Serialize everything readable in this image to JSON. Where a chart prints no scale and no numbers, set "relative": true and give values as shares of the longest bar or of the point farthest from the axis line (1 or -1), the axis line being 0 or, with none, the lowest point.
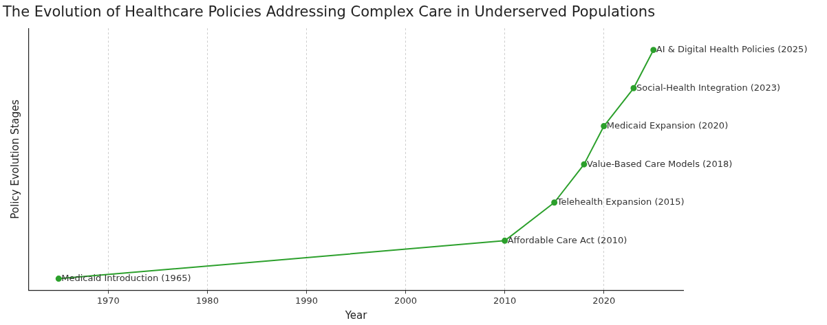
{
  "chart_data": {
    "type": "line",
    "title": "The Evolution of Healthcare Policies Addressing Complex Care in Underserved Populations",
    "xlabel": "Year",
    "ylabel": "Policy Evolution Stages",
    "x": [
      1965,
      2010,
      2015,
      2018,
      2020,
      2023,
      2025
    ],
    "series": [
      {
        "color": "#2ca02c",
        "values": [
          0.048,
          0.206,
          0.365,
          0.524,
          0.683,
          0.841,
          1
        ]
      }
    ],
    "relative": true,
    "xlim": [
      1962,
      2028
    ],
    "xticks": [
      1970,
      1980,
      1990,
      2000,
      2010,
      2020
    ],
    "grid": "x",
    "marker": "circle",
    "line_style": "solid",
    "legend": false,
    "annotations": [
      {
        "text": "Medicaid Introduction (1965)",
        "x": 1965,
        "y": 0.048
      },
      {
        "text": "Affordable Care Act (2010)",
        "x": 2010,
        "y": 0.206
      },
      {
        "text": "Telehealth Expansion (2015)",
        "x": 2015,
        "y": 0.365
      },
      {
        "text": "Value-Based Care Models (2018)",
        "x": 2018,
        "y": 0.524
      },
      {
        "text": "Medicaid Expansion (2020)",
        "x": 2020,
        "y": 0.683
      },
      {
        "text": "Social-Health Integration (2023)",
        "x": 2023,
        "y": 0.841
      },
      {
        "text": "AI & Digital Health Policies (2025)",
        "x": 2025,
        "y": 1
      }
    ]
  }
}
